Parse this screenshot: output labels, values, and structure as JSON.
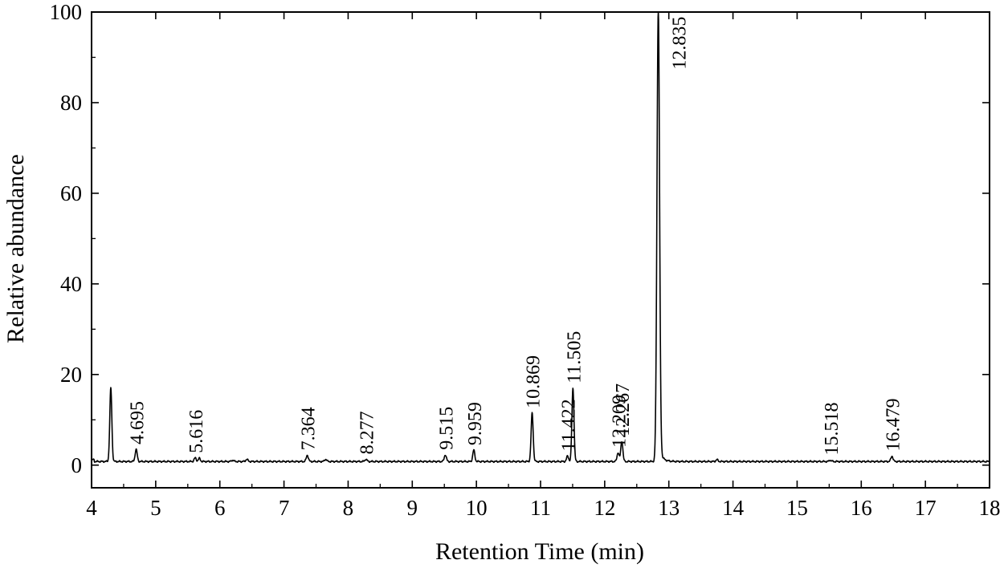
{
  "chart_data": {
    "type": "line",
    "title": "",
    "xlabel": "Retention Time (min)",
    "ylabel": "Relative abundance",
    "xlim": [
      4,
      18
    ],
    "ylim": [
      -5,
      100
    ],
    "x_ticks": [
      "4",
      "5",
      "6",
      "7",
      "8",
      "9",
      "10",
      "11",
      "12",
      "13",
      "14",
      "15",
      "16",
      "17",
      "18"
    ],
    "y_ticks": [
      "0",
      "20",
      "40",
      "60",
      "80",
      "100"
    ],
    "grid": false,
    "legend": "none",
    "baseline": 0.8,
    "peaks": [
      {
        "rt": 4.3,
        "height": 17.0,
        "label": ""
      },
      {
        "rt": 4.695,
        "height": 3.5,
        "label": "4.695"
      },
      {
        "rt": 5.616,
        "height": 1.6,
        "label": "5.616"
      },
      {
        "rt": 5.68,
        "height": 1.5,
        "label": ""
      },
      {
        "rt": 6.2,
        "height": 1.1,
        "label": ""
      },
      {
        "rt": 6.42,
        "height": 1.3,
        "label": ""
      },
      {
        "rt": 7.364,
        "height": 2.2,
        "label": "7.364"
      },
      {
        "rt": 7.65,
        "height": 1.3,
        "label": ""
      },
      {
        "rt": 8.277,
        "height": 1.3,
        "label": "8.277"
      },
      {
        "rt": 9.515,
        "height": 2.3,
        "label": "9.515"
      },
      {
        "rt": 9.959,
        "height": 3.3,
        "label": "9.959"
      },
      {
        "rt": 10.869,
        "height": 11.5,
        "label": "10.869"
      },
      {
        "rt": 11.422,
        "height": 2.0,
        "label": "11.422"
      },
      {
        "rt": 11.505,
        "height": 17.0,
        "label": "11.505"
      },
      {
        "rt": 12.209,
        "height": 2.8,
        "label": "12.209"
      },
      {
        "rt": 12.267,
        "height": 5.3,
        "label": "12.267"
      },
      {
        "rt": 12.835,
        "height": 100.0,
        "label": "12.835"
      },
      {
        "rt": 13.75,
        "height": 1.2,
        "label": ""
      },
      {
        "rt": 15.518,
        "height": 1.1,
        "label": "15.518"
      },
      {
        "rt": 16.479,
        "height": 2.0,
        "label": "16.479"
      }
    ]
  }
}
